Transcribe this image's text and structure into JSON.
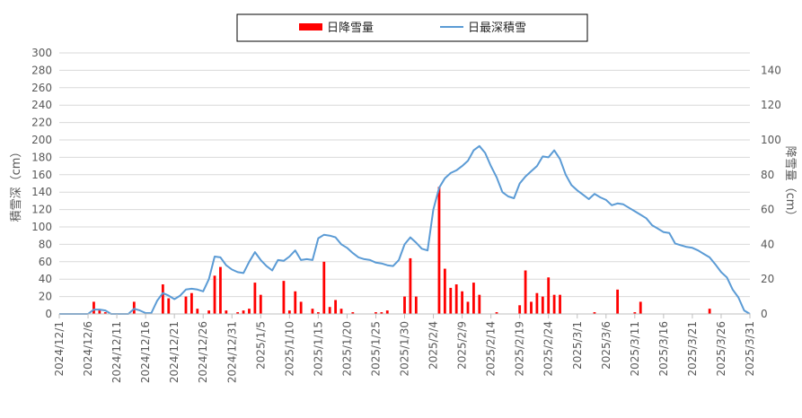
{
  "chart_data": {
    "type": "bar+line",
    "title": "",
    "legend": {
      "placement": "top",
      "entries": [
        {
          "name": "日降雪量",
          "kind": "bar",
          "color": "#ff0000"
        },
        {
          "name": "日最深積雪",
          "kind": "line",
          "color": "#5b9bd5"
        }
      ]
    },
    "left_axis": {
      "label": "積雪深（cm）",
      "min": 0,
      "max": 300,
      "step": 20
    },
    "right_axis": {
      "label": "降雪量（cm）",
      "min": 0,
      "max": 150,
      "step": 20
    },
    "x_axis": {
      "start": "2024-12-01",
      "end": "2025-03-31",
      "tick_labels": [
        "2024/12/1",
        "2024/12/6",
        "2024/12/11",
        "2024/12/16",
        "2024/12/21",
        "2024/12/26",
        "2024/12/31",
        "2025/1/5",
        "2025/1/10",
        "2025/1/15",
        "2025/1/20",
        "2025/1/25",
        "2025/1/30",
        "2025/2/4",
        "2025/2/9",
        "2025/2/14",
        "2025/2/19",
        "2025/2/24",
        "2025/3/1",
        "2025/3/6",
        "2025/3/11",
        "2025/3/16",
        "2025/3/21",
        "2025/3/26",
        "2025/3/31"
      ]
    },
    "gridlines": true,
    "series": [
      {
        "name": "日降雪量",
        "type": "bar",
        "axis": "right",
        "color": "#ff0000",
        "points": [
          {
            "date": "2024-12-07",
            "value": 7
          },
          {
            "date": "2024-12-08",
            "value": 2
          },
          {
            "date": "2024-12-09",
            "value": 1
          },
          {
            "date": "2024-12-14",
            "value": 7
          },
          {
            "date": "2024-12-19",
            "value": 17
          },
          {
            "date": "2024-12-20",
            "value": 9
          },
          {
            "date": "2024-12-23",
            "value": 10
          },
          {
            "date": "2024-12-24",
            "value": 12
          },
          {
            "date": "2024-12-25",
            "value": 3
          },
          {
            "date": "2024-12-27",
            "value": 2
          },
          {
            "date": "2024-12-28",
            "value": 22
          },
          {
            "date": "2024-12-29",
            "value": 27
          },
          {
            "date": "2024-12-30",
            "value": 2
          },
          {
            "date": "2025-01-01",
            "value": 1
          },
          {
            "date": "2025-01-02",
            "value": 2
          },
          {
            "date": "2025-01-03",
            "value": 3
          },
          {
            "date": "2025-01-04",
            "value": 18
          },
          {
            "date": "2025-01-05",
            "value": 11
          },
          {
            "date": "2025-01-09",
            "value": 19
          },
          {
            "date": "2025-01-10",
            "value": 2
          },
          {
            "date": "2025-01-11",
            "value": 13
          },
          {
            "date": "2025-01-12",
            "value": 7
          },
          {
            "date": "2025-01-14",
            "value": 3
          },
          {
            "date": "2025-01-15",
            "value": 1
          },
          {
            "date": "2025-01-16",
            "value": 30
          },
          {
            "date": "2025-01-17",
            "value": 4
          },
          {
            "date": "2025-01-18",
            "value": 8
          },
          {
            "date": "2025-01-19",
            "value": 3
          },
          {
            "date": "2025-01-21",
            "value": 1
          },
          {
            "date": "2025-01-25",
            "value": 1
          },
          {
            "date": "2025-01-26",
            "value": 1
          },
          {
            "date": "2025-01-27",
            "value": 2
          },
          {
            "date": "2025-01-30",
            "value": 10
          },
          {
            "date": "2025-01-31",
            "value": 32
          },
          {
            "date": "2025-02-01",
            "value": 10
          },
          {
            "date": "2025-02-05",
            "value": 73
          },
          {
            "date": "2025-02-06",
            "value": 26
          },
          {
            "date": "2025-02-07",
            "value": 15
          },
          {
            "date": "2025-02-08",
            "value": 17
          },
          {
            "date": "2025-02-09",
            "value": 13
          },
          {
            "date": "2025-02-10",
            "value": 7
          },
          {
            "date": "2025-02-11",
            "value": 18
          },
          {
            "date": "2025-02-12",
            "value": 11
          },
          {
            "date": "2025-02-15",
            "value": 1
          },
          {
            "date": "2025-02-19",
            "value": 5
          },
          {
            "date": "2025-02-20",
            "value": 25
          },
          {
            "date": "2025-02-21",
            "value": 7
          },
          {
            "date": "2025-02-22",
            "value": 12
          },
          {
            "date": "2025-02-23",
            "value": 10
          },
          {
            "date": "2025-02-24",
            "value": 21
          },
          {
            "date": "2025-02-25",
            "value": 11
          },
          {
            "date": "2025-02-26",
            "value": 11
          },
          {
            "date": "2025-03-04",
            "value": 1
          },
          {
            "date": "2025-03-08",
            "value": 14
          },
          {
            "date": "2025-03-11",
            "value": 1
          },
          {
            "date": "2025-03-12",
            "value": 7
          },
          {
            "date": "2025-03-24",
            "value": 3
          }
        ]
      },
      {
        "name": "日最深積雪",
        "type": "line",
        "axis": "left",
        "color": "#5b9bd5",
        "points": [
          {
            "date": "2024-12-01",
            "value": 0
          },
          {
            "date": "2024-12-06",
            "value": 0
          },
          {
            "date": "2024-12-07",
            "value": 5
          },
          {
            "date": "2024-12-08",
            "value": 5
          },
          {
            "date": "2024-12-09",
            "value": 4
          },
          {
            "date": "2024-12-10",
            "value": 0
          },
          {
            "date": "2024-12-13",
            "value": 0
          },
          {
            "date": "2024-12-14",
            "value": 6
          },
          {
            "date": "2024-12-15",
            "value": 4
          },
          {
            "date": "2024-12-16",
            "value": 1
          },
          {
            "date": "2024-12-17",
            "value": 1
          },
          {
            "date": "2024-12-18",
            "value": 15
          },
          {
            "date": "2024-12-19",
            "value": 24
          },
          {
            "date": "2024-12-20",
            "value": 21
          },
          {
            "date": "2024-12-21",
            "value": 17
          },
          {
            "date": "2024-12-22",
            "value": 21
          },
          {
            "date": "2024-12-23",
            "value": 28
          },
          {
            "date": "2024-12-24",
            "value": 29
          },
          {
            "date": "2024-12-25",
            "value": 28
          },
          {
            "date": "2024-12-26",
            "value": 26
          },
          {
            "date": "2024-12-27",
            "value": 40
          },
          {
            "date": "2024-12-28",
            "value": 66
          },
          {
            "date": "2024-12-29",
            "value": 65
          },
          {
            "date": "2024-12-30",
            "value": 56
          },
          {
            "date": "2024-12-31",
            "value": 51
          },
          {
            "date": "2025-01-01",
            "value": 48
          },
          {
            "date": "2025-01-02",
            "value": 47
          },
          {
            "date": "2025-01-03",
            "value": 60
          },
          {
            "date": "2025-01-04",
            "value": 71
          },
          {
            "date": "2025-01-05",
            "value": 62
          },
          {
            "date": "2025-01-06",
            "value": 55
          },
          {
            "date": "2025-01-07",
            "value": 50
          },
          {
            "date": "2025-01-08",
            "value": 62
          },
          {
            "date": "2025-01-09",
            "value": 61
          },
          {
            "date": "2025-01-10",
            "value": 66
          },
          {
            "date": "2025-01-11",
            "value": 73
          },
          {
            "date": "2025-01-12",
            "value": 62
          },
          {
            "date": "2025-01-13",
            "value": 63
          },
          {
            "date": "2025-01-14",
            "value": 62
          },
          {
            "date": "2025-01-15",
            "value": 87
          },
          {
            "date": "2025-01-16",
            "value": 91
          },
          {
            "date": "2025-01-17",
            "value": 90
          },
          {
            "date": "2025-01-18",
            "value": 88
          },
          {
            "date": "2025-01-19",
            "value": 80
          },
          {
            "date": "2025-01-20",
            "value": 76
          },
          {
            "date": "2025-01-21",
            "value": 70
          },
          {
            "date": "2025-01-22",
            "value": 65
          },
          {
            "date": "2025-01-23",
            "value": 63
          },
          {
            "date": "2025-01-24",
            "value": 62
          },
          {
            "date": "2025-01-25",
            "value": 59
          },
          {
            "date": "2025-01-26",
            "value": 58
          },
          {
            "date": "2025-01-27",
            "value": 56
          },
          {
            "date": "2025-01-28",
            "value": 55
          },
          {
            "date": "2025-01-29",
            "value": 62
          },
          {
            "date": "2025-01-30",
            "value": 80
          },
          {
            "date": "2025-01-31",
            "value": 88
          },
          {
            "date": "2025-02-01",
            "value": 82
          },
          {
            "date": "2025-02-02",
            "value": 75
          },
          {
            "date": "2025-02-03",
            "value": 73
          },
          {
            "date": "2025-02-04",
            "value": 120
          },
          {
            "date": "2025-02-05",
            "value": 145
          },
          {
            "date": "2025-02-06",
            "value": 156
          },
          {
            "date": "2025-02-07",
            "value": 162
          },
          {
            "date": "2025-02-08",
            "value": 165
          },
          {
            "date": "2025-02-09",
            "value": 170
          },
          {
            "date": "2025-02-10",
            "value": 176
          },
          {
            "date": "2025-02-11",
            "value": 188
          },
          {
            "date": "2025-02-12",
            "value": 193
          },
          {
            "date": "2025-02-13",
            "value": 185
          },
          {
            "date": "2025-02-14",
            "value": 170
          },
          {
            "date": "2025-02-15",
            "value": 157
          },
          {
            "date": "2025-02-16",
            "value": 140
          },
          {
            "date": "2025-02-17",
            "value": 135
          },
          {
            "date": "2025-02-18",
            "value": 133
          },
          {
            "date": "2025-02-19",
            "value": 150
          },
          {
            "date": "2025-02-20",
            "value": 158
          },
          {
            "date": "2025-02-21",
            "value": 164
          },
          {
            "date": "2025-02-22",
            "value": 170
          },
          {
            "date": "2025-02-23",
            "value": 181
          },
          {
            "date": "2025-02-24",
            "value": 180
          },
          {
            "date": "2025-02-25",
            "value": 188
          },
          {
            "date": "2025-02-26",
            "value": 178
          },
          {
            "date": "2025-02-27",
            "value": 160
          },
          {
            "date": "2025-02-28",
            "value": 148
          },
          {
            "date": "2025-03-01",
            "value": 142
          },
          {
            "date": "2025-03-02",
            "value": 137
          },
          {
            "date": "2025-03-03",
            "value": 132
          },
          {
            "date": "2025-03-04",
            "value": 138
          },
          {
            "date": "2025-03-05",
            "value": 134
          },
          {
            "date": "2025-03-06",
            "value": 131
          },
          {
            "date": "2025-03-07",
            "value": 125
          },
          {
            "date": "2025-03-08",
            "value": 127
          },
          {
            "date": "2025-03-09",
            "value": 126
          },
          {
            "date": "2025-03-10",
            "value": 122
          },
          {
            "date": "2025-03-11",
            "value": 118
          },
          {
            "date": "2025-03-12",
            "value": 114
          },
          {
            "date": "2025-03-13",
            "value": 110
          },
          {
            "date": "2025-03-14",
            "value": 102
          },
          {
            "date": "2025-03-15",
            "value": 98
          },
          {
            "date": "2025-03-16",
            "value": 94
          },
          {
            "date": "2025-03-17",
            "value": 93
          },
          {
            "date": "2025-03-18",
            "value": 81
          },
          {
            "date": "2025-03-19",
            "value": 79
          },
          {
            "date": "2025-03-20",
            "value": 77
          },
          {
            "date": "2025-03-21",
            "value": 76
          },
          {
            "date": "2025-03-22",
            "value": 73
          },
          {
            "date": "2025-03-23",
            "value": 69
          },
          {
            "date": "2025-03-24",
            "value": 65
          },
          {
            "date": "2025-03-25",
            "value": 57
          },
          {
            "date": "2025-03-26",
            "value": 48
          },
          {
            "date": "2025-03-27",
            "value": 42
          },
          {
            "date": "2025-03-28",
            "value": 28
          },
          {
            "date": "2025-03-29",
            "value": 19
          },
          {
            "date": "2025-03-30",
            "value": 4
          },
          {
            "date": "2025-03-31",
            "value": 0
          }
        ]
      }
    ]
  }
}
